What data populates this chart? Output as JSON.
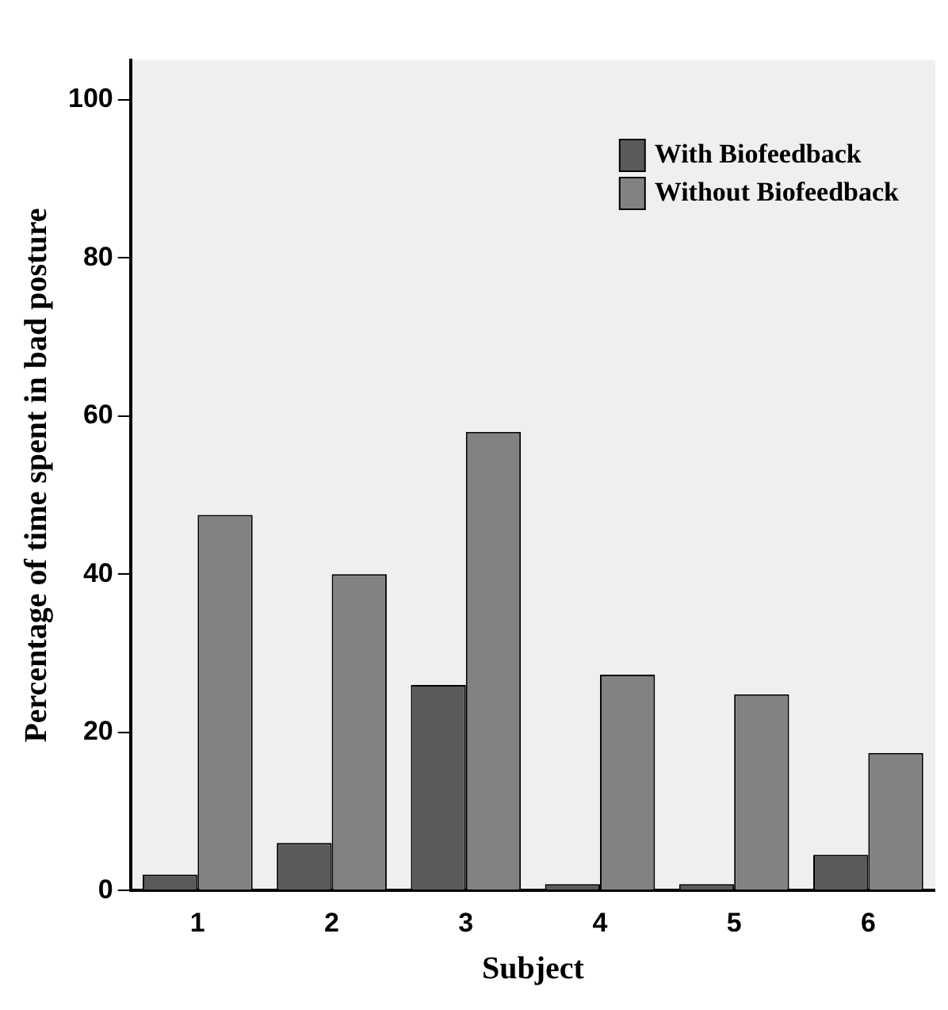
{
  "chart_data": {
    "type": "bar",
    "xlabel": "Subject",
    "ylabel": "Percentage of time spent in bad posture",
    "categories": [
      "1",
      "2",
      "3",
      "4",
      "5",
      "6"
    ],
    "series": [
      {
        "name": "With Biofeedback",
        "color": "#5a5a5a",
        "values": [
          2.0,
          6.0,
          26,
          0.8,
          0.8,
          4.5
        ]
      },
      {
        "name": "Without Biofeedback",
        "color": "#828282",
        "values": [
          47.5,
          40,
          58,
          27.3,
          24.8,
          17.4
        ]
      }
    ],
    "ylim": [
      0,
      105
    ],
    "yticks": [
      0,
      20,
      40,
      60,
      80,
      100
    ],
    "grid": false,
    "legend": "top right"
  }
}
